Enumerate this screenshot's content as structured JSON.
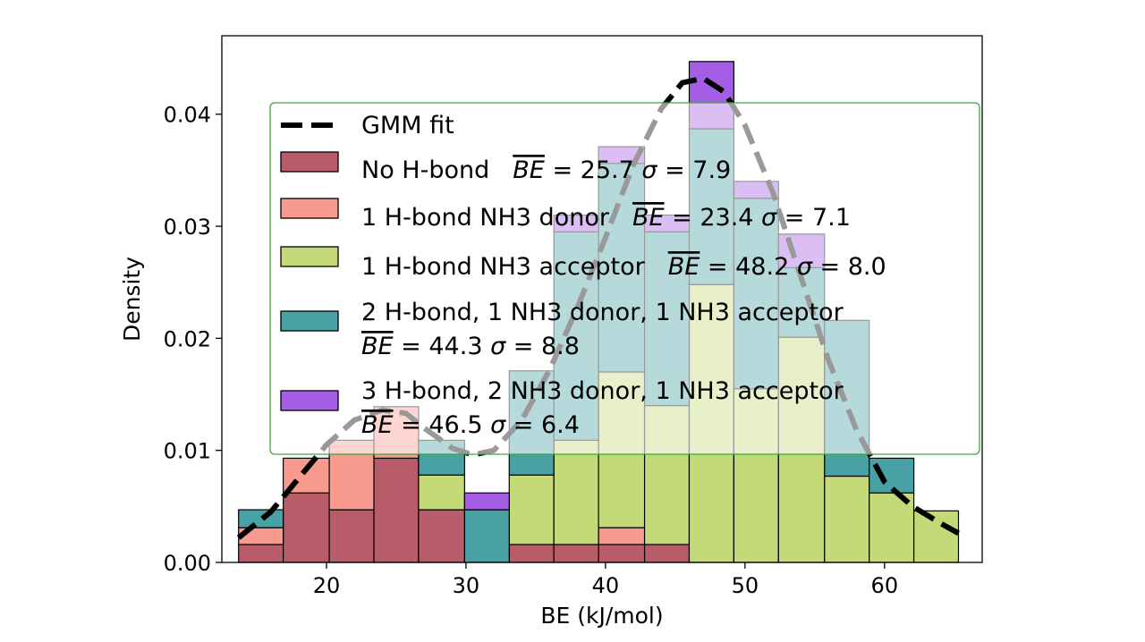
{
  "chart_data": {
    "type": "bar",
    "title": "",
    "xlabel": "BE (kJ/mol)",
    "ylabel": "Density",
    "xlim": [
      12.5,
      67
    ],
    "ylim": [
      0,
      0.047
    ],
    "xticks": [
      20,
      30,
      40,
      50,
      60
    ],
    "yticks": [
      0.0,
      0.01,
      0.02,
      0.03,
      0.04
    ],
    "xtick_labels": [
      "20",
      "30",
      "40",
      "50",
      "60"
    ],
    "ytick_labels": [
      "0.00",
      "0.01",
      "0.02",
      "0.03",
      "0.04"
    ],
    "stacked": true,
    "grid": false,
    "bin_edges": [
      13.7,
      16.9,
      20.2,
      23.4,
      26.6,
      29.9,
      33.1,
      36.3,
      39.5,
      42.8,
      46.0,
      49.2,
      52.4,
      55.7,
      58.9,
      62.1,
      65.3
    ],
    "series": [
      {
        "name": "No H-bond",
        "mean_label": "25.7",
        "sigma_label": "7.9",
        "color": "#b85c69",
        "values": [
          0.0016,
          0.0062,
          0.0047,
          0.0093,
          0.0047,
          0,
          0.0016,
          0.0016,
          0.0016,
          0.0016,
          0,
          0,
          0,
          0,
          0,
          0
        ]
      },
      {
        "name": "1 H-bond NH3 donor",
        "mean_label": "23.4",
        "sigma_label": "7.1",
        "color": "#f99a8e",
        "values": [
          0.0015,
          0.0031,
          0.0062,
          0.0046,
          0,
          0,
          0,
          0,
          0.0015,
          0,
          0,
          0,
          0,
          0,
          0,
          0
        ]
      },
      {
        "name": "1 H-bond NH3 acceptor",
        "mean_label": "48.2",
        "sigma_label": "8.0",
        "color": "#c4d977",
        "values": [
          0,
          0,
          0,
          0,
          0.0031,
          0,
          0.0062,
          0.0093,
          0.0139,
          0.0124,
          0.0248,
          0.0155,
          0.0201,
          0.0077,
          0.0062,
          0.0046
        ]
      },
      {
        "name": "2 H-bond, 1 NH3 donor, 1 NH3 acceptor",
        "mean_label": "44.3",
        "sigma_label": "8.8",
        "color": "#4aa1a5",
        "values": [
          0.0016,
          0,
          0,
          0,
          0.0031,
          0.0047,
          0.0093,
          0.0186,
          0.0186,
          0.0155,
          0.0139,
          0.017,
          0.0062,
          0.0139,
          0.0031,
          0
        ]
      },
      {
        "name": "3 H-bond, 2 NH3 donor, 1 NH3 acceptor",
        "mean_label": "46.5",
        "sigma_label": "6.4",
        "color": "#a45de4",
        "values": [
          0,
          0,
          0,
          0,
          0,
          0.0015,
          0,
          0.0015,
          0.0015,
          0.0015,
          0.006,
          0.0015,
          0.003,
          0,
          0,
          0
        ]
      }
    ],
    "fit": {
      "name": "GMM fit",
      "color": "#000000",
      "x": [
        13.7,
        16,
        18,
        20,
        22,
        24,
        25.7,
        27,
        29,
        30.5,
        32,
        34,
        36,
        38,
        40,
        42,
        44,
        45.5,
        47,
        48.5,
        50,
        52,
        54,
        56,
        58,
        60,
        62,
        64,
        65.3
      ],
      "y": [
        0.0022,
        0.0045,
        0.0075,
        0.0105,
        0.0127,
        0.0136,
        0.0133,
        0.012,
        0.0102,
        0.0096,
        0.01,
        0.0127,
        0.0172,
        0.0228,
        0.029,
        0.0355,
        0.0405,
        0.0428,
        0.0432,
        0.042,
        0.039,
        0.033,
        0.0255,
        0.018,
        0.0118,
        0.0072,
        0.005,
        0.0035,
        0.0026
      ]
    },
    "legend": {
      "placement": "center",
      "mean_symbol": "BE",
      "sigma_symbol": "σ"
    }
  }
}
